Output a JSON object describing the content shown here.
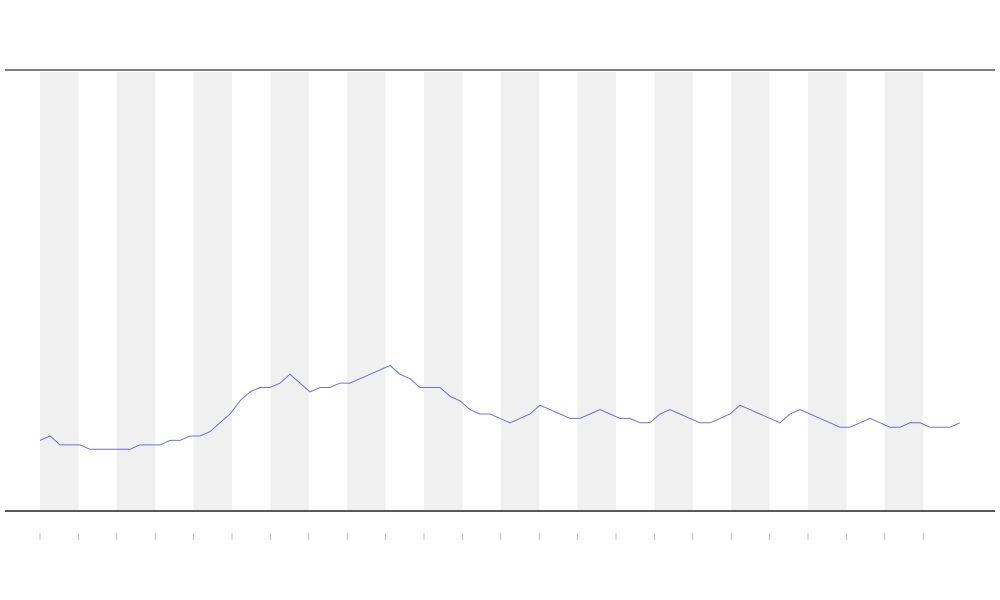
{
  "chart_data": {
    "type": "line",
    "color": "#3333dd",
    "ylim": [
      0,
      100
    ],
    "values": [
      16,
      17,
      15,
      15,
      15,
      14,
      14,
      14,
      14,
      14,
      15,
      15,
      15,
      16,
      16,
      17,
      17,
      18,
      20,
      22,
      25,
      27,
      28,
      28,
      29,
      31,
      29,
      27,
      28,
      28,
      29,
      29,
      30,
      31,
      32,
      33,
      31,
      30,
      28,
      28,
      28,
      26,
      25,
      23,
      22,
      22,
      21,
      20,
      21,
      22,
      24,
      23,
      22,
      21,
      21,
      22,
      23,
      22,
      21,
      21,
      20,
      20,
      22,
      23,
      22,
      21,
      20,
      20,
      21,
      22,
      24,
      23,
      22,
      21,
      20,
      22,
      23,
      22,
      21,
      20,
      19,
      19,
      20,
      21,
      20,
      19,
      19,
      20,
      20,
      19,
      19,
      19,
      20
    ]
  }
}
